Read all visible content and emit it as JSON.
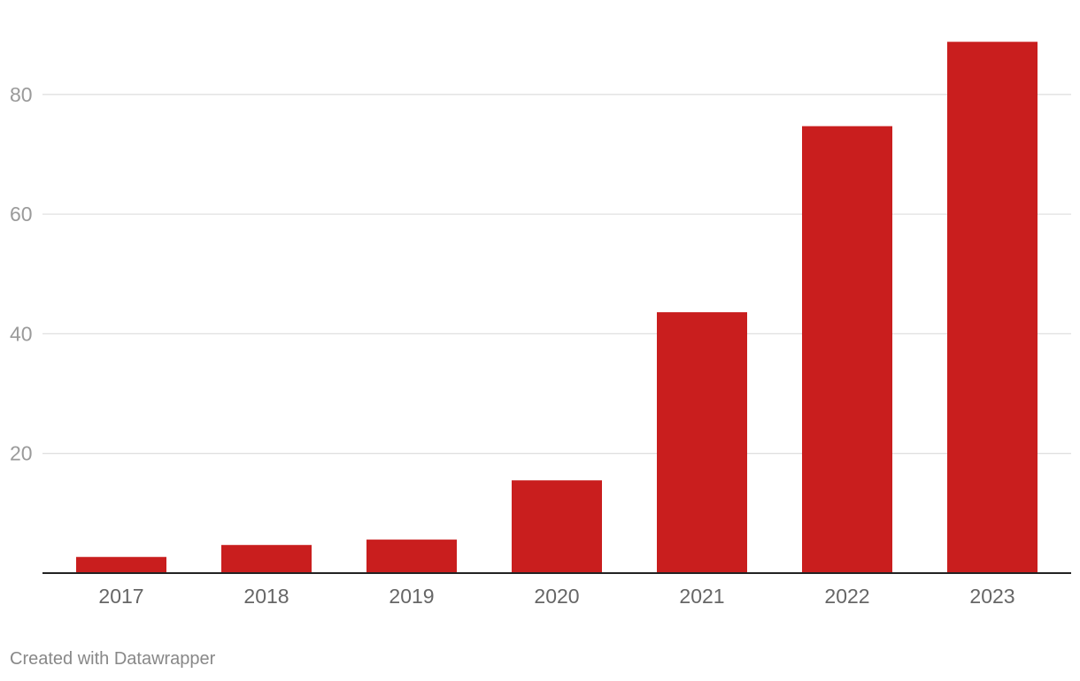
{
  "colors": {
    "bar": "#c91e1e",
    "grid": "#e0e0e0",
    "axis": "#222222",
    "tick_text": "#9a9a9a",
    "category_text": "#666666"
  },
  "chart_data": {
    "type": "bar",
    "title": "",
    "xlabel": "",
    "ylabel": "",
    "categories": [
      "2017",
      "2018",
      "2019",
      "2020",
      "2021",
      "2022",
      "2023"
    ],
    "values": [
      2.7,
      4.7,
      5.6,
      15.5,
      43.6,
      74.7,
      88.8
    ],
    "ylim": [
      0,
      92
    ],
    "yticks": [
      20,
      40,
      60,
      80
    ],
    "grid": true,
    "legend": "none"
  },
  "footer": {
    "credit": "Created with Datawrapper"
  }
}
